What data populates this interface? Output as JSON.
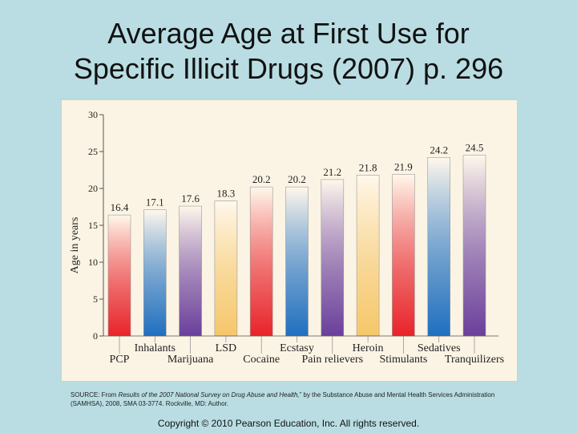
{
  "slide": {
    "title_line1": "Average Age at First Use for",
    "title_line2": "Specific Illicit Drugs (2007) p. 296",
    "source_prefix": "SOURCE: From ",
    "source_title": "Results of the 2007 National Survey on Drug Abuse and Health,",
    "source_suffix": "” by the Substance Abuse and Mental Health Services Administration (SAMHSA), 2008, SMA 03-3774. Rockville, MD: Author.",
    "copyright": "Copyright © 2010 Pearson Education, Inc. All rights reserved."
  },
  "chart_data": {
    "type": "bar",
    "title": "",
    "xlabel": "",
    "ylabel": "Age in years",
    "ylim": [
      0,
      30
    ],
    "yticks": [
      0,
      5,
      10,
      15,
      20,
      25,
      30
    ],
    "grid": false,
    "categories": [
      "PCP",
      "Inhalants",
      "Marijuana",
      "LSD",
      "Cocaine",
      "Ecstasy",
      "Pain relievers",
      "Heroin",
      "Stimulants",
      "Sedatives",
      "Tranquilizers"
    ],
    "values": [
      16.4,
      17.1,
      17.6,
      18.3,
      20.2,
      20.2,
      21.2,
      21.8,
      21.9,
      24.2,
      24.5
    ],
    "value_labels": [
      "16.4",
      "17.1",
      "17.6",
      "18.3",
      "20.2",
      "20.2",
      "21.2",
      "21.8",
      "21.9",
      "24.2",
      "24.5"
    ],
    "bar_colors": [
      "#e8232a",
      "#1f6fc0",
      "#6a3f9c",
      "#f6c76a",
      "#e8232a",
      "#1f6fc0",
      "#6a3f9c",
      "#f6c76a",
      "#e8232a",
      "#1f6fc0",
      "#6a3f9c"
    ]
  }
}
